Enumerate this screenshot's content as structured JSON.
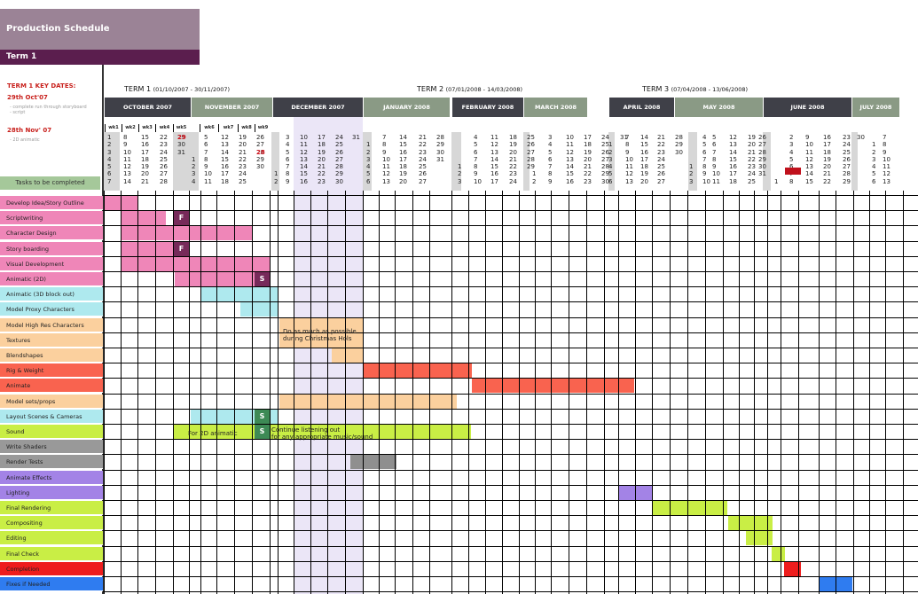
{
  "title": "Production Schedule",
  "term_tab": "Term 1",
  "key_dates": {
    "heading": "TERM 1 KEY DATES:",
    "date1": "29th Oct'07",
    "note1a": "- complete run through storyboard",
    "note1b": "- script",
    "date2": "28th Nov' 07",
    "note2": "- 2D animatic"
  },
  "tasks_header": "Tasks to be completed",
  "terms": [
    {
      "label": "TERM 1",
      "range": "(01/10/2007 - 30/11/2007)"
    },
    {
      "label": "TERM 2",
      "range": "(07/01/2008 - 14/03/2008)"
    },
    {
      "label": "TERM 3",
      "range": "(07/04/2008 - 13/06/2008)"
    }
  ],
  "months": [
    {
      "name": "OCTOBER 2007",
      "color": "#3f4048"
    },
    {
      "name": "NOVEMBER 2007",
      "color": "#8a9a85"
    },
    {
      "name": "DECEMBER 2007",
      "color": "#3f4048"
    },
    {
      "name": "JANUARY 2008",
      "color": "#8a9a85"
    },
    {
      "name": "FEBRUARY 2008",
      "color": "#3f4048"
    },
    {
      "name": "MARCH 2008",
      "color": "#8a9a85"
    },
    {
      "name": "APRIL 2008",
      "color": "#3f4048"
    },
    {
      "name": "MAY 2008",
      "color": "#8a9a85"
    },
    {
      "name": "JUNE 2008",
      "color": "#3f4048"
    },
    {
      "name": "JULY 2008",
      "color": "#8a9a85"
    }
  ],
  "week_labels": [
    "wk1",
    "wk2",
    "wk3",
    "wk4",
    "wk5",
    "wk6",
    "wk7",
    "wk8",
    "wk9"
  ],
  "date_columns": [
    "1\n2\n3\n4\n5\n6\n7",
    "8\n9\n10\n11\n12\n13\n14",
    "15\n16\n17\n18\n19\n20\n21",
    "22\n23\n24\n25\n26\n27\n28",
    "29\n30\n31",
    "\n\n\n1\n2\n3\n4",
    "5\n6\n7\n8\n9\n10\n11",
    "12\n13\n14\n15\n16\n17\n18",
    "19\n20\n21\n22\n23\n24\n25",
    "26\n27\n28\n29\n30",
    "\n\n\n\n\n1\n2",
    "3\n4\n5\n6\n7\n8\n9",
    "10\n11\n12\n13\n14\n15\n16",
    "17\n18\n19\n20\n21\n22\n23",
    "24\n25\n26\n27\n28\n29\n30",
    "31",
    "\n1\n2\n3\n4\n5\n6",
    "7\n8\n9\n10\n11\n12\n13",
    "14\n15\n16\n17\n18\n19\n20",
    "21\n22\n23\n24\n25\n26\n27",
    "28\n29\n30\n31",
    "\n\n\n\n1\n2\n3",
    "4\n5\n6\n7\n8\n9\n10",
    "11\n12\n13\n14\n15\n16\n17",
    "18\n19\n20\n21\n22\n23\n24",
    "25\n26\n27\n28\n29",
    "\n\n\n\n\n1\n2",
    "3\n4\n5\n6\n7\n8\n9",
    "10\n11\n12\n13\n14\n15\n16",
    "17\n18\n19\n20\n21\n22\n23",
    "24\n25\n26\n27\n28\n29\n30",
    "31",
    "\n1\n2\n3\n4\n5\n6",
    "7\n8\n9\n10\n11\n12\n13",
    "14\n15\n16\n17\n18\n19\n20",
    "21\n22\n23\n24\n25\n26\n27",
    "28\n29\n30",
    "\n\n\n\n1\n2\n3",
    "4\n5\n6\n7\n8\n9\n10",
    "5\n6\n7\n8\n9\n10\n11",
    "12\n13\n14\n15\n16\n17\n18",
    "19\n20\n21\n22\n23\n24\n25",
    "26\n27\n28\n29\n30\n31",
    "\n\n\n\n\n\n1",
    "2\n3\n4\n5\n6\n7\n8",
    "9\n10\n11\n12\n13\n14\n15",
    "16\n17\n18\n19\n20\n21\n22",
    "23\n24\n25\n26\n27\n28\n29",
    "30",
    "\n1\n2\n3\n4\n5\n6",
    "7\n8\n9\n10\n11\n12\n13",
    "14\n15\n16\n17\n18\n19\n20"
  ],
  "tasks": [
    {
      "label": "Develop Idea/Story Outline",
      "color": "#ef86b8"
    },
    {
      "label": "Scriptwriting",
      "color": "#ef86b8"
    },
    {
      "label": "Character Design",
      "color": "#ef86b8"
    },
    {
      "label": "Story boarding",
      "color": "#ef86b8"
    },
    {
      "label": "Visual Development",
      "color": "#ef86b8"
    },
    {
      "label": "Animatic (2D)",
      "color": "#ef86b8"
    },
    {
      "label": "Animatic (3D block out)",
      "color": "#aee9ee"
    },
    {
      "label": "Model Proxy Characters",
      "color": "#aee9ee"
    },
    {
      "label": "Model High Res Characters",
      "color": "#fbd09e"
    },
    {
      "label": "Textures",
      "color": "#fbd09e"
    },
    {
      "label": "Blendshapes",
      "color": "#fbd09e"
    },
    {
      "label": "Rig & Weight",
      "color": "#f9634f"
    },
    {
      "label": "Animate",
      "color": "#f9634f"
    },
    {
      "label": "Model sets/props",
      "color": "#fbd09e"
    },
    {
      "label": "Layout Scenes & Cameras",
      "color": "#aee9ee"
    },
    {
      "label": "Sound",
      "color": "#c9ee45"
    },
    {
      "label": "Write Shaders",
      "color": "#999999"
    },
    {
      "label": "Render Tests",
      "color": "#999999"
    },
    {
      "label": "Animate Effects",
      "color": "#a383e6"
    },
    {
      "label": "Lighting",
      "color": "#a383e6"
    },
    {
      "label": "Final Rendering",
      "color": "#c9ee45"
    },
    {
      "label": "Compositing",
      "color": "#c9ee45"
    },
    {
      "label": "Editing",
      "color": "#c9ee45"
    },
    {
      "label": "Final Check",
      "color": "#c9ee45"
    },
    {
      "label": "Completion",
      "color": "#ee1d1d"
    },
    {
      "label": "Fixes if Needed",
      "color": "#2f7cf0"
    }
  ],
  "milestones": {
    "f": "F",
    "s": "S"
  },
  "notes": {
    "christmas": "Do as much as possible\nduring Christmas Hols",
    "for2d": "For 2D animatic",
    "sound": "Continue listening out\nfor any appropriate music/sound"
  }
}
